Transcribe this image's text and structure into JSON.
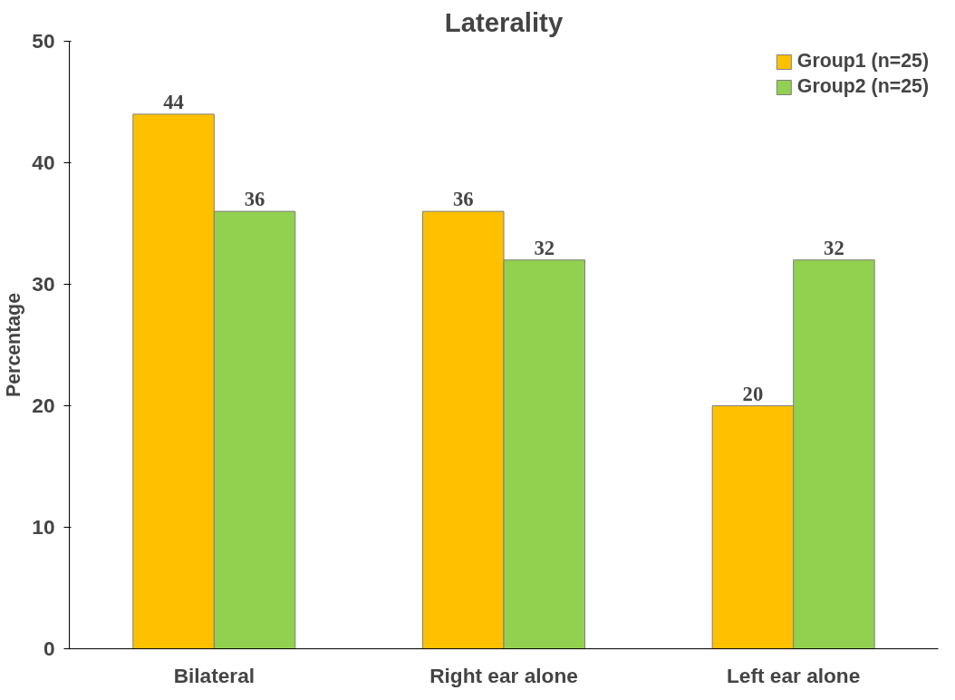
{
  "chart_data": {
    "type": "bar",
    "title": "Laterality",
    "ylabel": "Percentage",
    "categories": [
      "Bilateral",
      "Right ear alone",
      "Left ear alone"
    ],
    "series": [
      {
        "name": "Group1 (n=25)",
        "color": "#ffc000",
        "values": [
          44,
          36,
          20
        ]
      },
      {
        "name": "Group2 (n=25)",
        "color": "#92d050",
        "values": [
          36,
          32,
          32
        ]
      }
    ],
    "ylim": [
      0,
      50
    ],
    "yticks": [
      0,
      10,
      20,
      30,
      40,
      50
    ],
    "grid": false,
    "legend": "top right",
    "data_labels": true
  }
}
